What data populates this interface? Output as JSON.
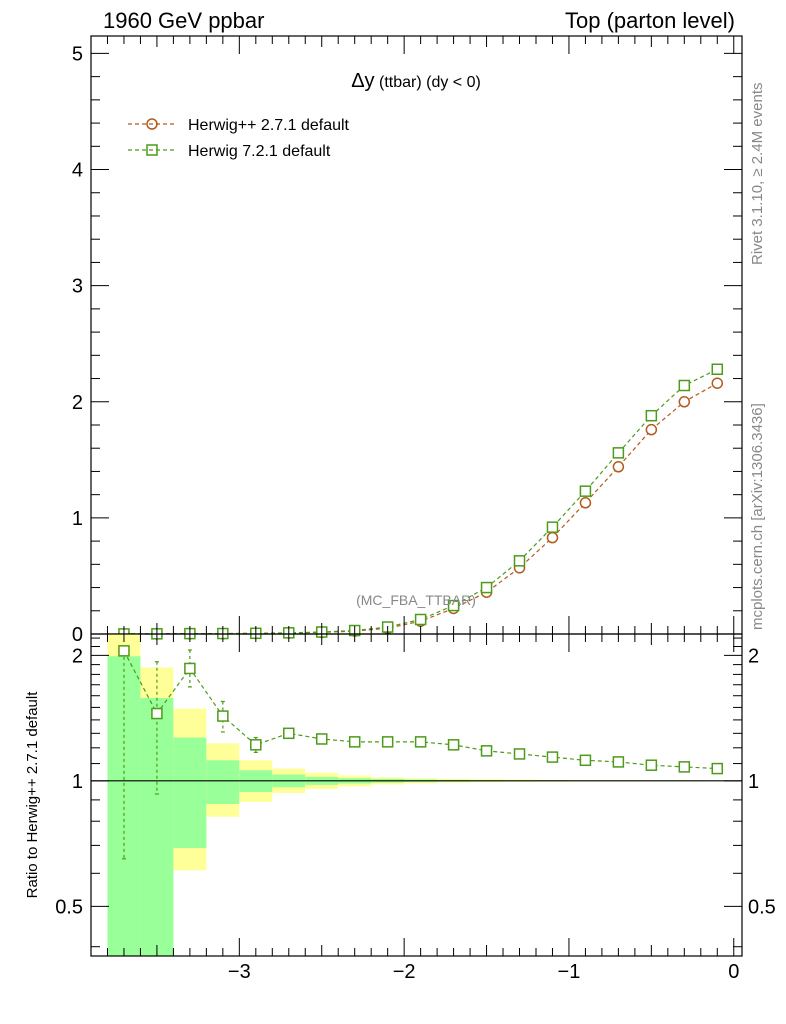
{
  "header": {
    "left_title": "1960 GeV ppbar",
    "right_title": "Top (parton level)"
  },
  "side_texts": {
    "rivet": "Rivet 3.1.10, ≥ 2.4M events",
    "mcplots": "mcplots.cern.ch [arXiv:1306.3436]"
  },
  "chart_data": [
    {
      "type": "line",
      "title_main": "Δy",
      "title_sub": " (ttbar) (dy < 0)",
      "watermark": "(MC_FBA_TTBAR)",
      "xlim": [
        -3.9,
        0.05
      ],
      "ylim": [
        0,
        5.15
      ],
      "yticks": [
        0,
        1,
        2,
        3,
        4,
        5
      ],
      "ytick_labels": [
        "0",
        "1",
        "2",
        "3",
        "4",
        "5"
      ],
      "x": [
        -3.7,
        -3.5,
        -3.3,
        -3.1,
        -2.9,
        -2.7,
        -2.5,
        -2.3,
        -2.1,
        -1.9,
        -1.7,
        -1.5,
        -1.3,
        -1.1,
        -0.9,
        -0.7,
        -0.5,
        -0.3,
        -0.1
      ],
      "series": [
        {
          "name": "Herwig++ 2.7.1 default",
          "marker": "circle",
          "color": "#b35a1f",
          "values": [
            0.0004,
            0.001,
            0.002,
            0.003,
            0.005,
            0.008,
            0.014,
            0.025,
            0.05,
            0.11,
            0.22,
            0.36,
            0.57,
            0.83,
            1.13,
            1.44,
            1.76,
            2.0,
            2.16
          ]
        },
        {
          "name": "Herwig 7.2.1 default",
          "marker": "square",
          "color": "#4c9b1a",
          "values": [
            0.0008,
            0.0015,
            0.0035,
            0.004,
            0.006,
            0.01,
            0.017,
            0.03,
            0.06,
            0.125,
            0.245,
            0.4,
            0.63,
            0.92,
            1.23,
            1.56,
            1.88,
            2.14,
            2.28
          ]
        }
      ],
      "legend_position": "top-left"
    },
    {
      "type": "line",
      "ylabel": "Ratio to Herwig++ 2.7.1 default",
      "xlim": [
        -3.9,
        0.05
      ],
      "ylim": [
        0.38,
        2.25
      ],
      "yticks": [
        0.5,
        1,
        2
      ],
      "ytick_labels": [
        "0.5",
        "1",
        "2"
      ],
      "xticks": [
        -3,
        -2,
        -1,
        0
      ],
      "xtick_labels": [
        "−3",
        "−2",
        "−1",
        "0"
      ],
      "reference_line": 1,
      "uncertainty_bands": {
        "bin_edges": [
          -3.8,
          -3.6,
          -3.4,
          -3.2,
          -3.0,
          -2.8,
          -2.6,
          -2.4,
          -2.2,
          -2.0,
          -1.8,
          -1.6,
          -1.4,
          -1.2,
          -1.0,
          -0.8,
          -0.6,
          -0.4,
          -0.2,
          0.0
        ],
        "green_color": "#99ff99",
        "yellow_color": "#ffff99",
        "green_upper": [
          1.99,
          1.58,
          1.27,
          1.12,
          1.06,
          1.035,
          1.022,
          1.015,
          1.01,
          1.007,
          1.005,
          1.004,
          1.003,
          1.003,
          1.002,
          1.002,
          1.002,
          1.002,
          1.001
        ],
        "green_lower": [
          0.3,
          0.3,
          0.69,
          0.88,
          0.94,
          0.965,
          0.978,
          0.985,
          0.99,
          0.993,
          0.995,
          0.996,
          0.997,
          0.997,
          0.998,
          0.998,
          0.998,
          0.998,
          0.999
        ],
        "yellow_upper": [
          2.3,
          1.87,
          1.49,
          1.23,
          1.12,
          1.07,
          1.045,
          1.03,
          1.02,
          1.014,
          1.01,
          1.008,
          1.006,
          1.005,
          1.004,
          1.004,
          1.003,
          1.003,
          1.002
        ],
        "yellow_lower": [
          0.3,
          0.3,
          0.61,
          0.82,
          0.89,
          0.935,
          0.956,
          0.97,
          0.98,
          0.986,
          0.99,
          0.992,
          0.994,
          0.995,
          0.996,
          0.996,
          0.997,
          0.997,
          0.998
        ]
      },
      "series": [
        {
          "name": "Herwig 7.2.1 default",
          "marker": "square",
          "color": "#4c9b1a",
          "x": [
            -3.7,
            -3.5,
            -3.3,
            -3.1,
            -2.9,
            -2.7,
            -2.5,
            -2.3,
            -2.1,
            -1.9,
            -1.7,
            -1.5,
            -1.3,
            -1.1,
            -0.9,
            -0.7,
            -0.5,
            -0.3,
            -0.1
          ],
          "values": [
            2.05,
            1.45,
            1.86,
            1.43,
            1.22,
            1.3,
            1.26,
            1.24,
            1.24,
            1.24,
            1.22,
            1.18,
            1.16,
            1.14,
            1.12,
            1.11,
            1.09,
            1.08,
            1.07
          ],
          "err_low": [
            1.4,
            0.52,
            0.18,
            0.12,
            0.05,
            0.03,
            0.02,
            0.02,
            0.01,
            0.01,
            0.01,
            0.01,
            0.01,
            0.01,
            0.0,
            0.0,
            0.0,
            0.0,
            0.0
          ],
          "err_high": [
            0.0,
            0.48,
            0.2,
            0.12,
            0.05,
            0.03,
            0.02,
            0.02,
            0.01,
            0.01,
            0.01,
            0.01,
            0.01,
            0.01,
            0.0,
            0.0,
            0.0,
            0.0,
            0.0
          ]
        }
      ]
    }
  ]
}
